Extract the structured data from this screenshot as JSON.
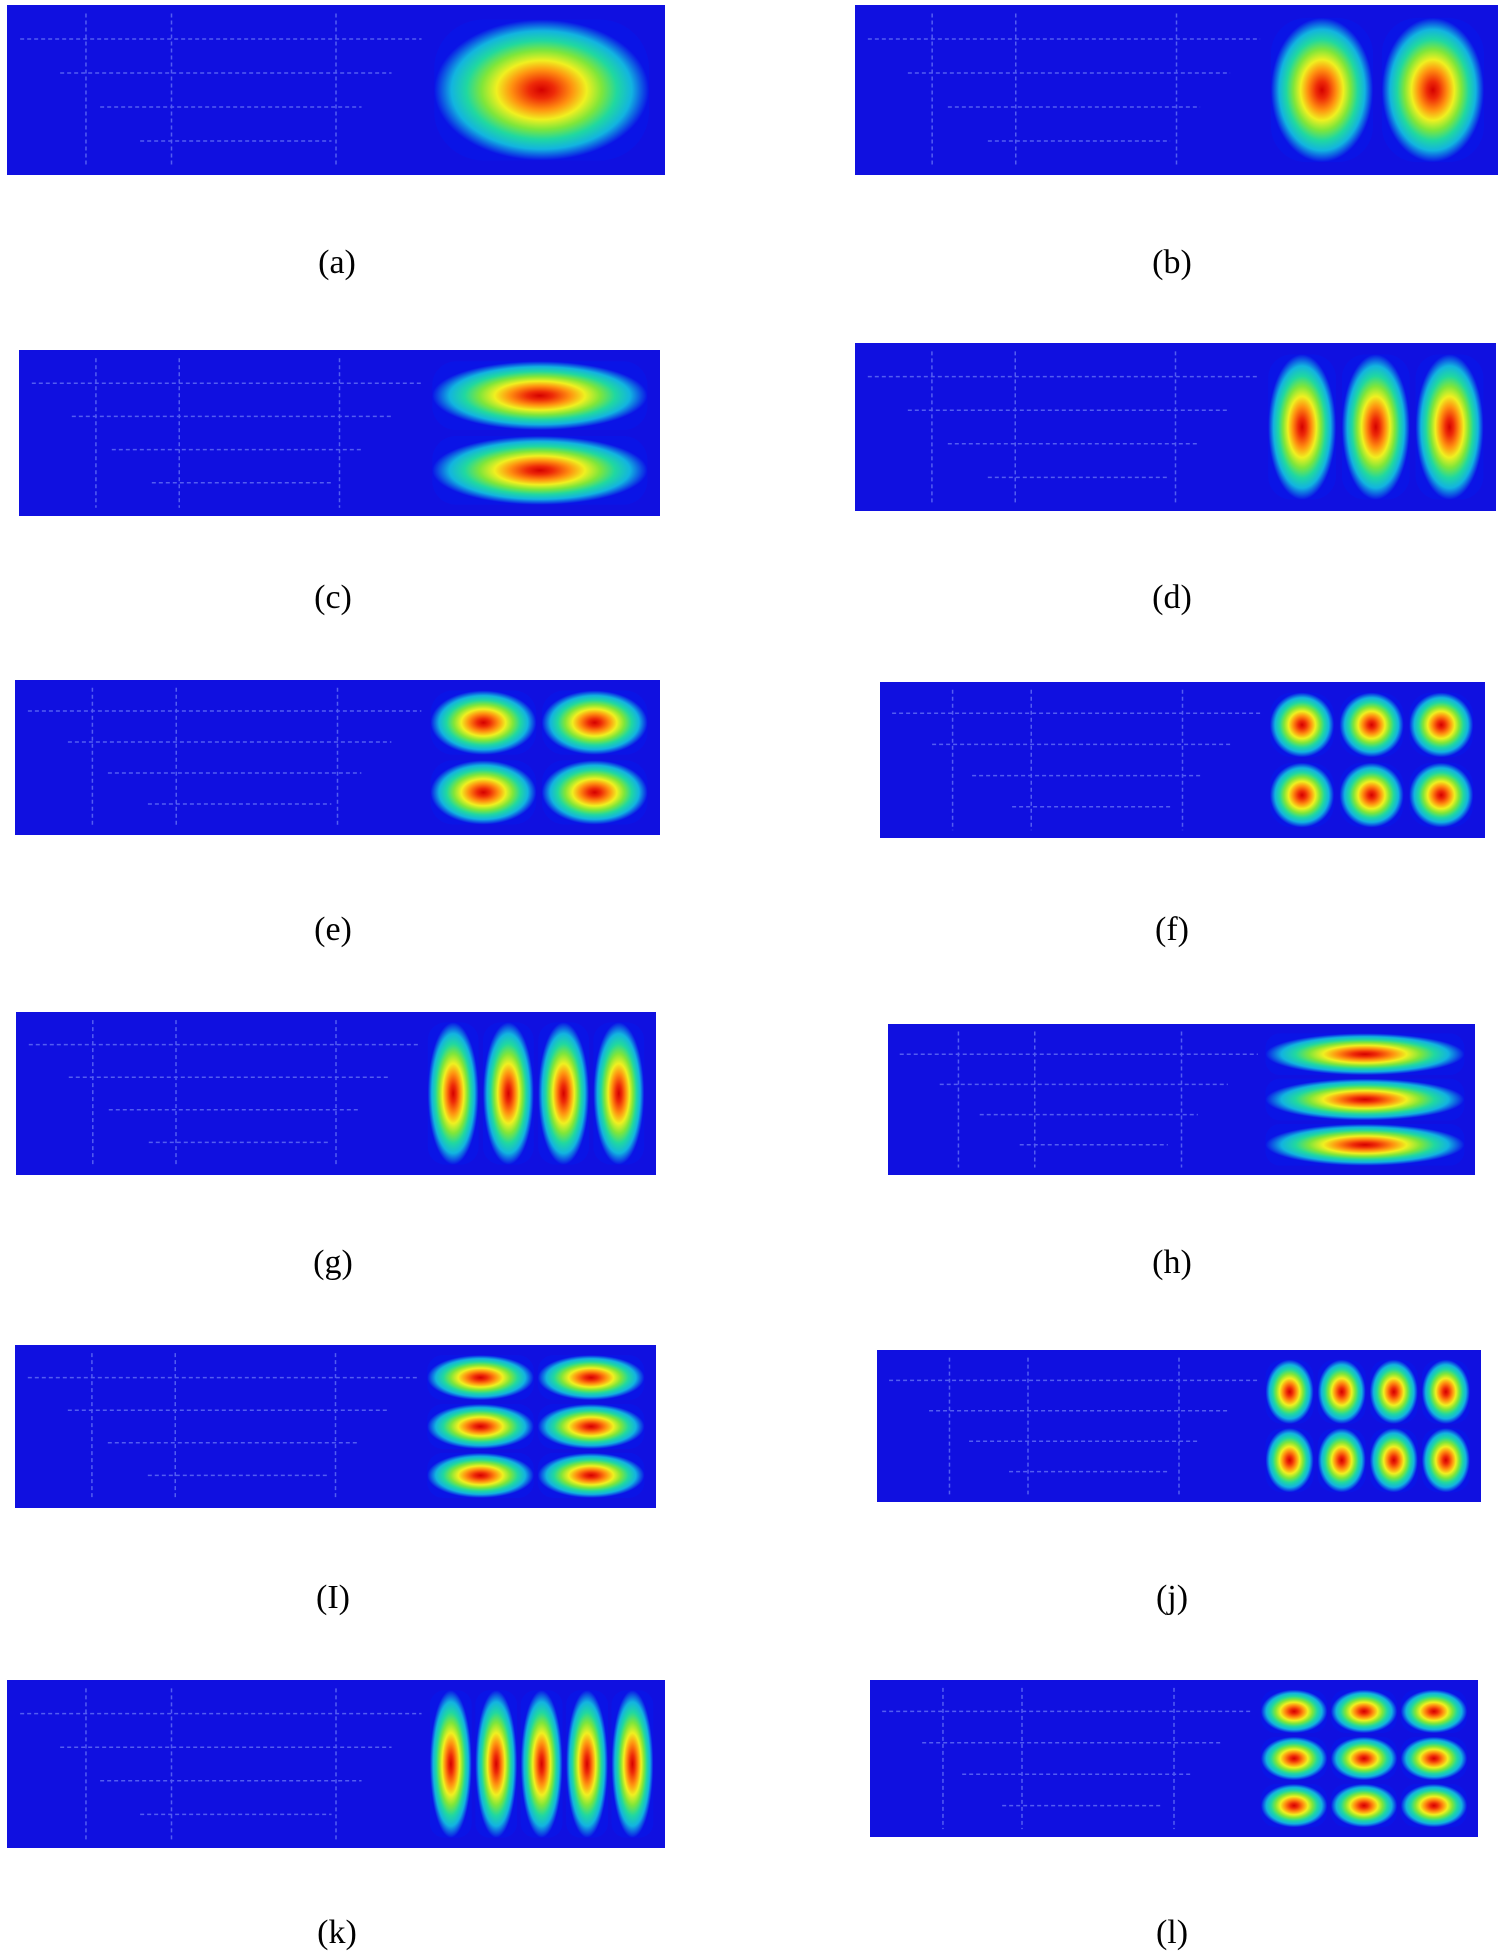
{
  "figure": {
    "colors": {
      "background_field": "#1010e0",
      "colormap": [
        "#0a14e6",
        "#12b4e0",
        "#20d8a0",
        "#7fe63a",
        "#f0f020",
        "#ff9010",
        "#ee2a08",
        "#d40000"
      ]
    },
    "panels": [
      {
        "caption": "(a)",
        "lobes_x": 1,
        "lobes_y": 1
      },
      {
        "caption": "(b)",
        "lobes_x": 2,
        "lobes_y": 1
      },
      {
        "caption": "(c)",
        "lobes_x": 1,
        "lobes_y": 2
      },
      {
        "caption": "(d)",
        "lobes_x": 3,
        "lobes_y": 1
      },
      {
        "caption": "(e)",
        "lobes_x": 2,
        "lobes_y": 2
      },
      {
        "caption": "(f)",
        "lobes_x": 3,
        "lobes_y": 2
      },
      {
        "caption": "(g)",
        "lobes_x": 4,
        "lobes_y": 1
      },
      {
        "caption": "(h)",
        "lobes_x": 1,
        "lobes_y": 3
      },
      {
        "caption": "(I)",
        "lobes_x": 2,
        "lobes_y": 3
      },
      {
        "caption": "(j)",
        "lobes_x": 4,
        "lobes_y": 2
      },
      {
        "caption": "(k)",
        "lobes_x": 5,
        "lobes_y": 1
      },
      {
        "caption": "(l)",
        "lobes_x": 3,
        "lobes_y": 3
      }
    ]
  }
}
